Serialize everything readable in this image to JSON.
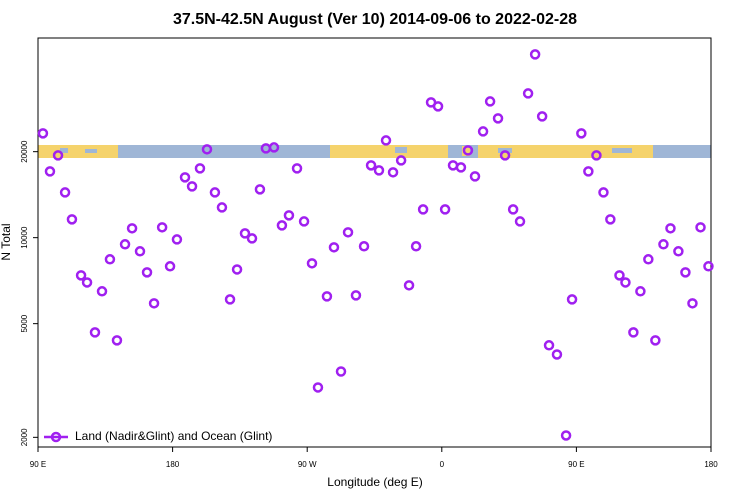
{
  "chart_data": {
    "type": "scatter",
    "title": "37.5N-42.5N August (Ver 10)   2014-09-06 to 2022-02-28",
    "x_label": "Longitude (deg E)",
    "y_label": "N Total",
    "log_y": true,
    "legend_position": "lower left",
    "xlim": [
      90,
      540
    ],
    "ylim": [
      1850,
      50000
    ],
    "xticks": [
      {
        "value": 90,
        "label": "90 E"
      },
      180,
      {
        "value": 270,
        "label": "90 W"
      },
      {
        "value": 360,
        "label": "0"
      },
      {
        "value": 450,
        "label": "90 E"
      },
      {
        "value": 540,
        "label": "180"
      }
    ],
    "yticks": [
      2000,
      5000,
      10000,
      20000
    ],
    "series": [
      {
        "name": "Land (Nadir&Glint) and Ocean (Glint)",
        "color": "#a020f0",
        "x": [
          93.3,
          98.0,
          103.4,
          108.1,
          112.7,
          118.8,
          122.8,
          128.1,
          132.8,
          138.1,
          142.8,
          148.2,
          152.9,
          158.2,
          162.9,
          167.6,
          173.0,
          178.3,
          182.9,
          188.3,
          193.0,
          198.3,
          203.0,
          208.3,
          213.0,
          218.4,
          223.1,
          228.4,
          233.1,
          238.4,
          242.4,
          247.8,
          253.1,
          257.8,
          263.2,
          267.9,
          273.2,
          277.2,
          283.2,
          287.9,
          292.6,
          297.3,
          302.6,
          308.0,
          312.7,
          318.0,
          322.7,
          327.4,
          332.8,
          338.1,
          342.8,
          347.5,
          352.8,
          357.5,
          362.2,
          367.5,
          372.8,
          377.5,
          382.2,
          387.6,
          392.3,
          397.6,
          402.3,
          407.7,
          412.3,
          417.7,
          422.4,
          427.1,
          431.7,
          437.0,
          443.1,
          447.1,
          453.3,
          458.0,
          463.4,
          468.1,
          472.7,
          478.8,
          482.8,
          488.1,
          492.8,
          498.1,
          502.8,
          508.2,
          512.9,
          518.2,
          522.9,
          527.6,
          533.0,
          538.3
        ],
        "values": [
          23180,
          17060,
          19410,
          14400,
          11590,
          7380,
          6970,
          4660,
          6490,
          8400,
          4370,
          9480,
          10780,
          8960,
          7560,
          5890,
          10870,
          7940,
          9860,
          16260,
          15120,
          17480,
          20380,
          14400,
          12760,
          6080,
          7740,
          10350,
          9940,
          14760,
          20540,
          20700,
          11040,
          11970,
          17480,
          11400,
          8130,
          2990,
          6230,
          9250,
          3400,
          10440,
          6280,
          9330,
          17910,
          17200,
          21900,
          16930,
          18640,
          6810,
          9330,
          12560,
          29760,
          28820,
          12560,
          17910,
          17620,
          20210,
          16390,
          23550,
          29990,
          26160,
          19410,
          12560,
          11400,
          31990,
          43810,
          26580,
          4200,
          3900,
          2030,
          6080,
          23180,
          17060,
          19410,
          14400,
          11590,
          7380,
          6970,
          4660,
          6490,
          8400,
          4370,
          9480,
          10780,
          8960,
          7560,
          5890,
          10870,
          7940
        ]
      }
    ]
  }
}
